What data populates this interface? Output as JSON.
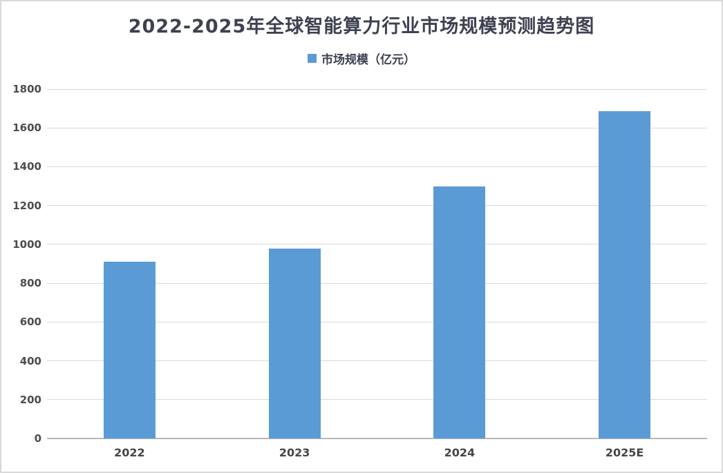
{
  "page": {
    "background_color": "#ffffff",
    "frame_border_color": "#d9d9d9"
  },
  "chart_data": {
    "type": "bar",
    "title": "2022-2025年全球智能算力行业市场规模预测趋势图",
    "legend": {
      "label": "市场规模（亿元）",
      "color": "#5b9bd5",
      "position": "top"
    },
    "categories": [
      "2022",
      "2023",
      "2024",
      "2025E"
    ],
    "values": [
      910,
      980,
      1300,
      1685
    ],
    "xlabel": "",
    "ylabel": "",
    "ylim": [
      0,
      1800
    ],
    "ytick_step": 200,
    "ytick_labels": [
      "0",
      "200",
      "400",
      "600",
      "800",
      "1000",
      "1200",
      "1400",
      "1600",
      "1800"
    ],
    "grid": true,
    "colors": {
      "bar": "#5b9bd5",
      "gridline": "#d9d9d9",
      "axis_line": "#b7b7b7",
      "title_text": "#3d4150",
      "tick_text": "#4d4d4d",
      "x_tick_text": "#454545"
    }
  }
}
